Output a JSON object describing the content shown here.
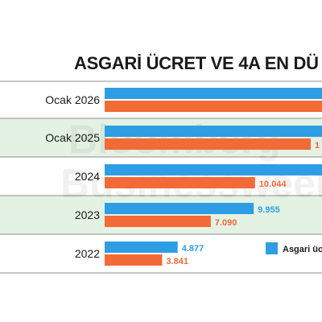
{
  "watermark": {
    "line1": "Bloomberg",
    "line2": "Businessweek"
  },
  "chart_data": {
    "type": "bar",
    "orientation": "horizontal",
    "title": "ASGARİ ÜCRET VE 4A EN DÜ",
    "categories": [
      "Ocak 2026",
      "Ocak 2025",
      "2024",
      "2023",
      "2022"
    ],
    "series": [
      {
        "name": "Asgari üc",
        "color": "#2e9ee4",
        "values": [
          null,
          null,
          null,
          9955,
          4877
        ],
        "labels": [
          "",
          "",
          "",
          "9.955",
          "4.877"
        ]
      },
      {
        "color": "#f26a35",
        "values": [
          null,
          null,
          10044,
          7090,
          3841
        ],
        "labels": [
          "",
          "1",
          "10.044",
          "7.090",
          "3.841"
        ]
      }
    ],
    "legend": {
      "position": "bottom-right"
    },
    "row_shading": [
      false,
      true,
      false,
      true,
      false
    ],
    "colors": {
      "blue": "#2e9ee4",
      "orange": "#f26a35",
      "label_blue": "#2e9ee4",
      "label_orange": "#f26a35",
      "row_tint": "#e4f2e4",
      "separator": "#8c8c8c"
    }
  }
}
